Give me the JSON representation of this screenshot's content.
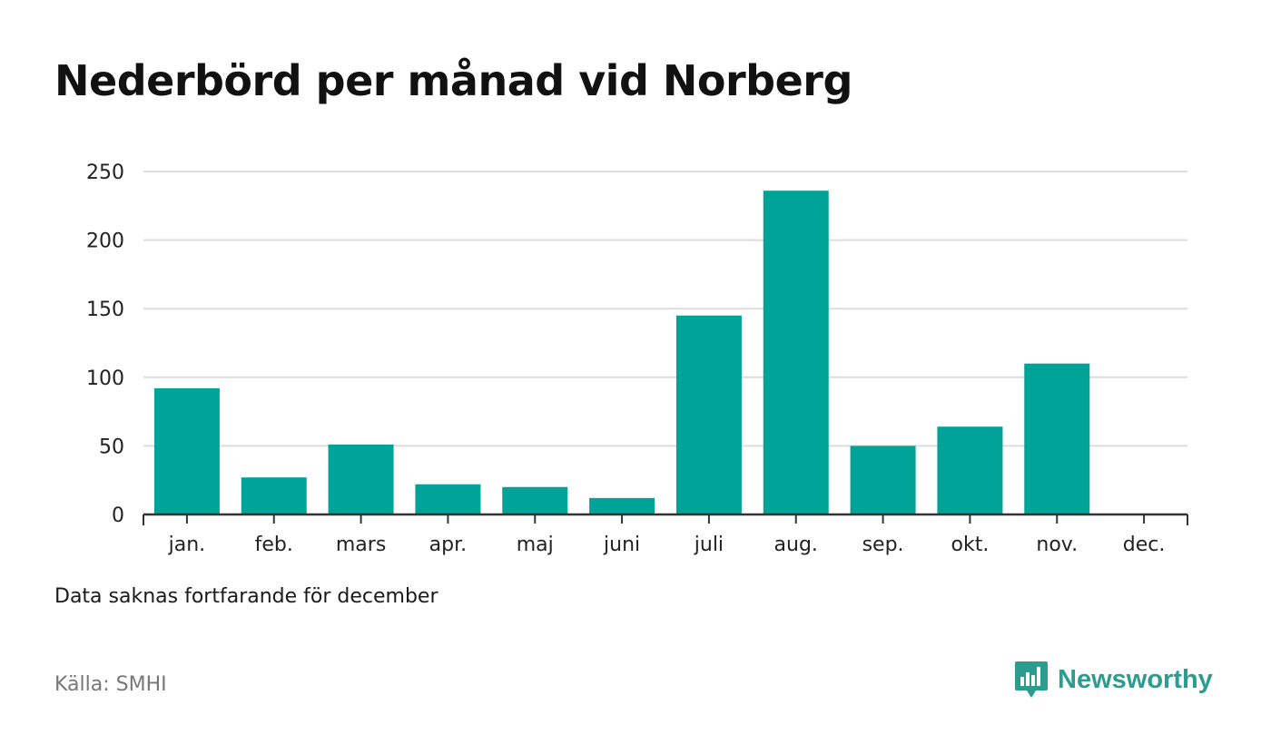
{
  "title": "Nederbörd per månad vid Norberg",
  "note": "Data saknas fortfarande för december",
  "source": "Källa: SMHI",
  "brand": {
    "name": "Newsworthy",
    "icon": "newsworthy-logo-icon",
    "color": "#2a9d8f"
  },
  "chart_data": {
    "type": "bar",
    "title": "Nederbörd per månad vid Norberg",
    "xlabel": "",
    "ylabel": "",
    "categories": [
      "jan.",
      "feb.",
      "mars",
      "apr.",
      "maj",
      "juni",
      "juli",
      "aug.",
      "sep.",
      "okt.",
      "nov.",
      "dec."
    ],
    "values": [
      92,
      27,
      51,
      22,
      20,
      12,
      145,
      236,
      50,
      64,
      110,
      null
    ],
    "ylim": [
      0,
      250
    ],
    "yticks": [
      0,
      50,
      100,
      150,
      200,
      250
    ],
    "grid": true,
    "bar_color": "#00a398"
  }
}
